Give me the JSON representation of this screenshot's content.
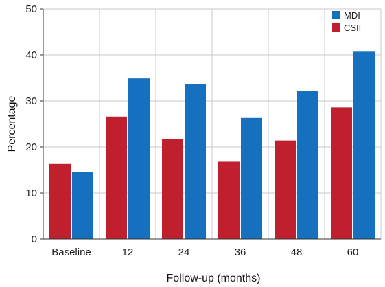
{
  "chart_data": {
    "type": "bar",
    "title": "",
    "xlabel": "Follow-up (months)",
    "ylabel": "Percentage",
    "categories": [
      "Baseline",
      "12",
      "24",
      "36",
      "48",
      "60"
    ],
    "series": [
      {
        "name": "CSII",
        "color": "#c0202e",
        "values": [
          16.3,
          26.6,
          21.7,
          16.8,
          21.4,
          28.6
        ]
      },
      {
        "name": "MDI",
        "color": "#1570bf",
        "values": [
          14.6,
          34.9,
          33.6,
          26.3,
          32.1,
          40.7
        ]
      }
    ],
    "ylim": [
      0,
      50
    ],
    "yticks": [
      0,
      10,
      20,
      30,
      40,
      50
    ],
    "grid": true,
    "legend_position": "top-right",
    "legend_order": [
      "MDI",
      "CSII"
    ]
  }
}
